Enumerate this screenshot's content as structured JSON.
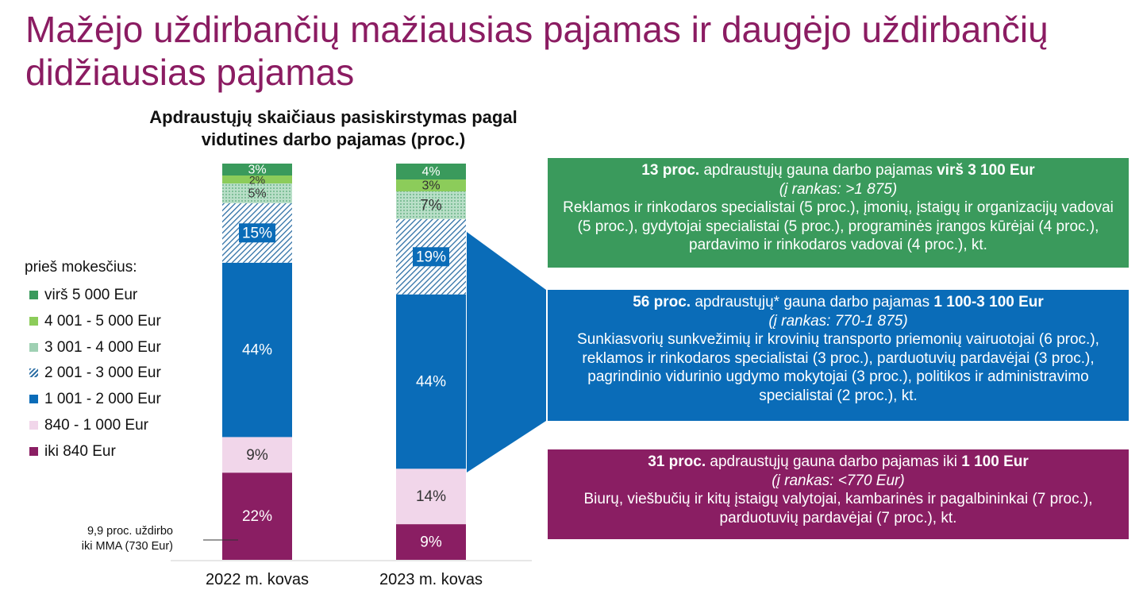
{
  "title": "Mažėjo uždirbančių mažiausias pajamas ir daugėjo uždirbančių didžiausias pajamas",
  "colors": {
    "title": "#8b1c62",
    "iki_840": "#8a1e63",
    "840_1000": "#f1d6ea",
    "1001_2000": "#0a6cb8",
    "2001_3000": "#2d6fa5",
    "3001_4000": "#9fd0b3",
    "4001_5000": "#8ccc5a",
    "virs_5000": "#3a9a5c"
  },
  "chart_data": {
    "type": "bar",
    "stacked": true,
    "title": "Apdraustųjų skaičiaus pasiskirstymas pagal vidutines darbo pajamas (proc.)",
    "categories": [
      "2022 m. kovas",
      "2023 m. kovas"
    ],
    "legend_title": "prieš mokesčius:",
    "series": [
      {
        "name": "iki 840 Eur",
        "values": [
          22,
          9
        ],
        "labels": [
          "22%",
          "9%"
        ]
      },
      {
        "name": "840 - 1 000 Eur",
        "values": [
          9,
          14
        ],
        "labels": [
          "9%",
          "14%"
        ]
      },
      {
        "name": "1 001 - 2 000 Eur",
        "values": [
          44,
          44
        ],
        "labels": [
          "44%",
          "44%"
        ]
      },
      {
        "name": "2 001 - 3 000 Eur",
        "values": [
          15,
          19
        ],
        "labels": [
          "15%",
          "19%"
        ]
      },
      {
        "name": "3 001 - 4 000 Eur",
        "values": [
          5,
          7
        ],
        "labels": [
          "5%",
          "7%"
        ]
      },
      {
        "name": "4 001 - 5 000 Eur",
        "values": [
          2,
          3
        ],
        "labels": [
          "2%",
          "3%"
        ]
      },
      {
        "name": "virš 5 000 Eur",
        "values": [
          3,
          4
        ],
        "labels": [
          "3%",
          "4%"
        ]
      }
    ],
    "legend_order": [
      "virš 5 000 Eur",
      "4 001 - 5 000 Eur",
      "3 001 - 4 000 Eur",
      "2 001 - 3 000 Eur",
      "1 001 - 2 000 Eur",
      "840 - 1 000 Eur",
      "iki 840 Eur"
    ],
    "ylim": [
      0,
      100
    ],
    "note": "9,9 proc. uždirbo iki MMA (730 Eur)",
    "note_line1": "9,9 proc. uždirbo",
    "note_line2": "iki MMA (730 Eur)"
  },
  "boxes": {
    "green": {
      "lead_bold1": "13 proc.",
      "lead_mid": " apdraustųjų gauna darbo pajamas ",
      "lead_bold2": "virš 3 100 Eur",
      "sub": "(į rankas: >1 875)",
      "desc": "Reklamos ir rinkodaros specialistai (5 proc.), įmonių, įstaigų ir organizacijų vadovai (5 proc.), gydytojai specialistai (5 proc.), programinės įrangos kūrėjai (4 proc.), pardavimo ir rinkodaros vadovai (4 proc.), kt."
    },
    "blue": {
      "lead_bold1": "56 proc.",
      "lead_mid": " apdraustųjų* gauna darbo pajamas ",
      "lead_bold2": "1 100-3 100 Eur",
      "sub": "(į rankas: 770-1 875)",
      "desc": "Sunkiasvorių sunkvežimių ir krovinių transporto priemonių vairuotojai (6 proc.), reklamos ir rinkodaros specialistai (3 proc.), parduotuvių pardavėjai (3 proc.), pagrindinio vidurinio ugdymo mokytojai (3 proc.), politikos ir administravimo specialistai (2 proc.), kt."
    },
    "purple": {
      "lead_bold1": "31 proc.",
      "lead_mid": " apdraustųjų gauna darbo pajamas iki ",
      "lead_bold2": "1 100 Eur",
      "sub": "(į rankas: <770 Eur)",
      "desc": "Biurų, viešbučių ir kitų įstaigų valytojai, kambarinės ir pagalbininkai (7 proc.), parduotuvių pardavėjai (7 proc.), kt."
    }
  }
}
